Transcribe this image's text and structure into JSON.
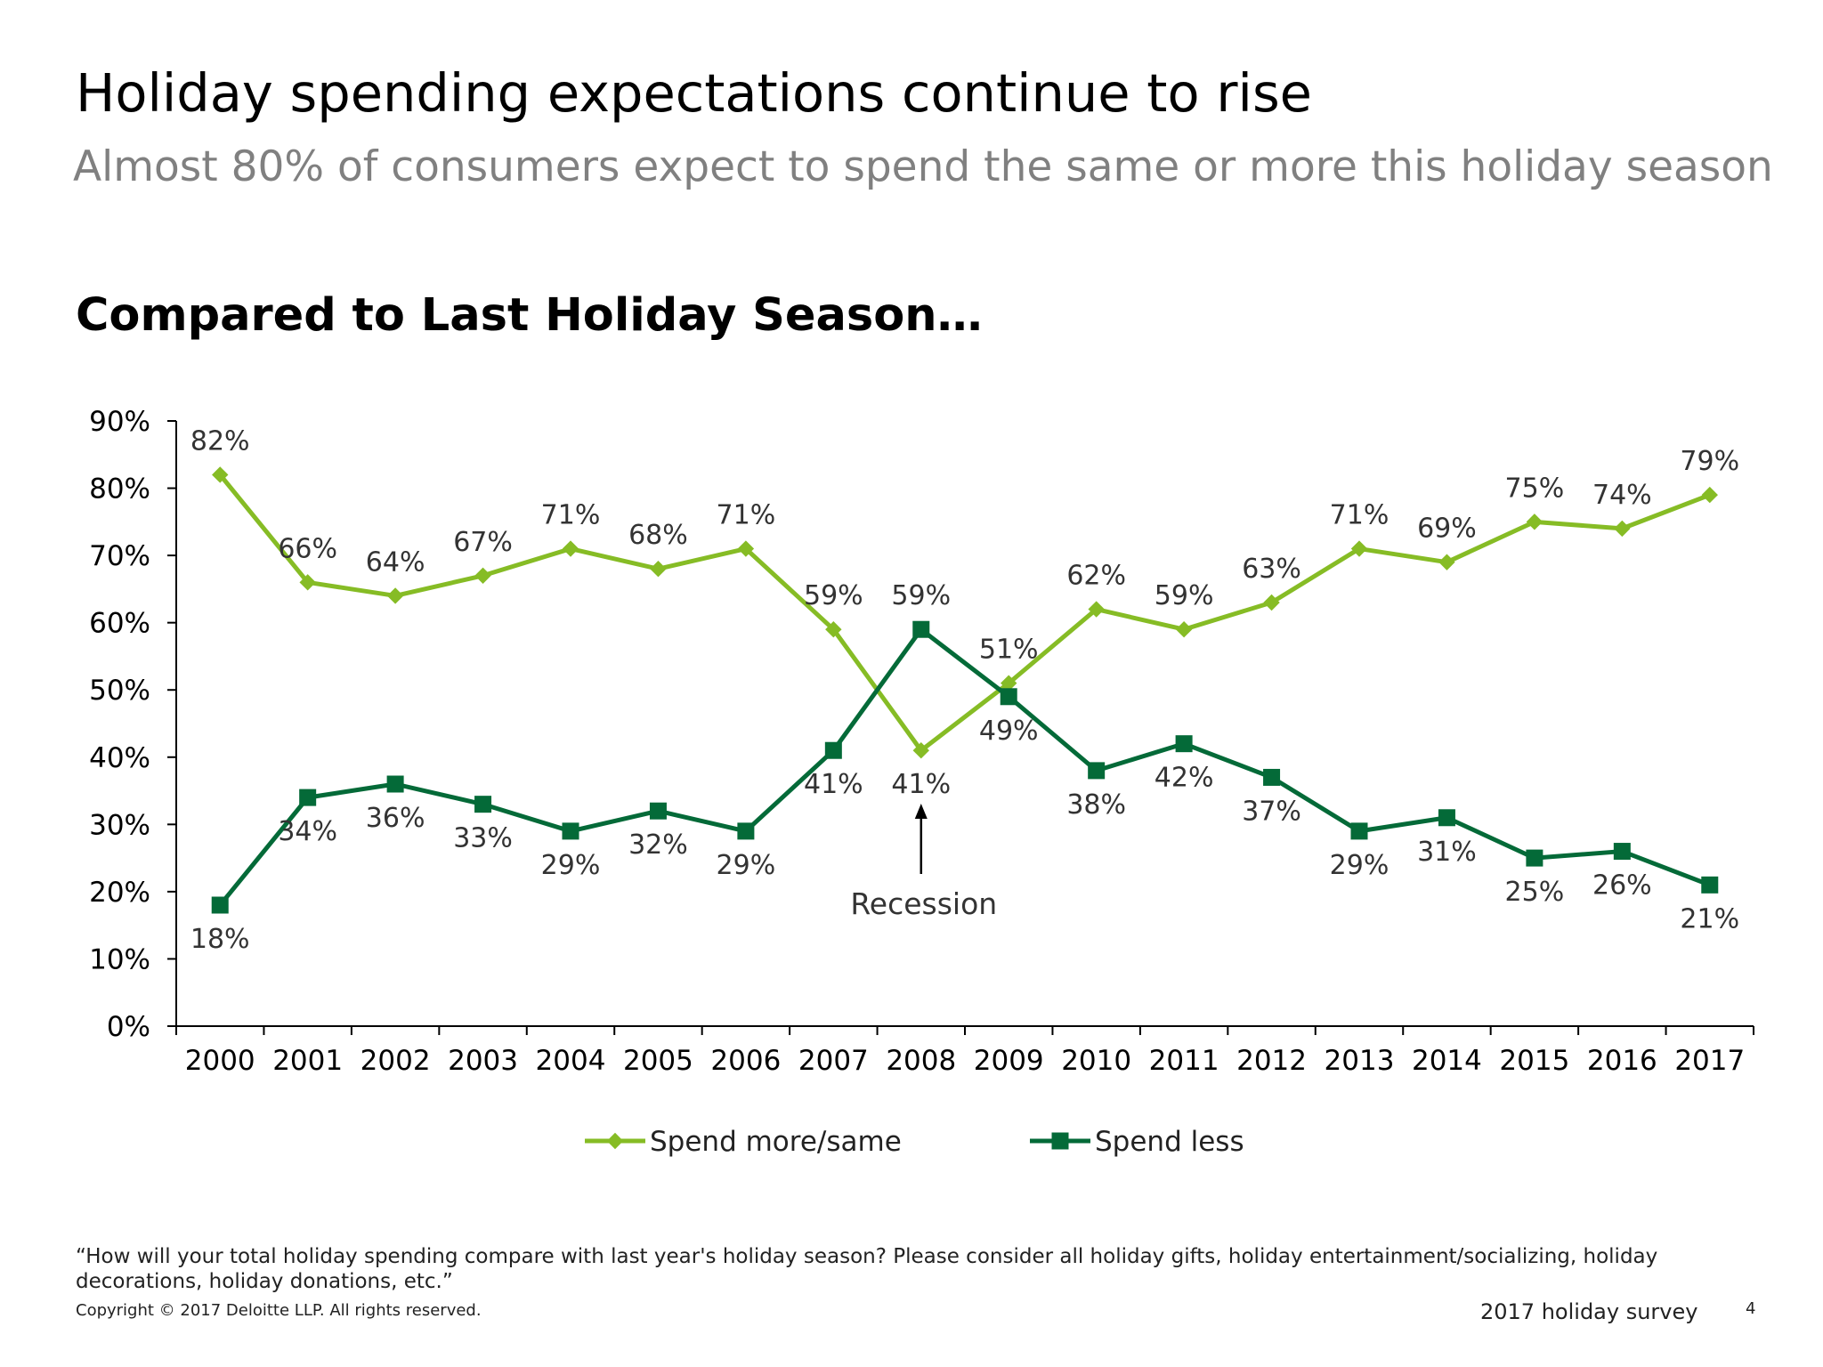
{
  "headline": "Holiday spending expectations continue to rise",
  "subheadline": "Almost 80% of consumers expect to spend the same or more this holiday season",
  "chart_title": "Compared to Last Holiday Season…",
  "footnote": "“How will your total holiday spending compare with last year's holiday season? Please consider all holiday gifts, holiday entertainment/socializing, holiday decorations, holiday donations, etc.”",
  "copyright": "Copyright © 2017 Deloitte LLP. All rights reserved.",
  "survey_label": "2017 holiday survey",
  "page_number": "4",
  "chart_data": {
    "type": "line",
    "x": [
      "2000",
      "2001",
      "2002",
      "2003",
      "2004",
      "2005",
      "2006",
      "2007",
      "2008",
      "2009",
      "2010",
      "2011",
      "2012",
      "2013",
      "2014",
      "2015",
      "2016",
      "2017"
    ],
    "ylim": [
      0,
      90
    ],
    "yticks": [
      0,
      10,
      20,
      30,
      40,
      50,
      60,
      70,
      80,
      90
    ],
    "y_tick_format": "percent",
    "grid": false,
    "legend_position": "bottom",
    "series": [
      {
        "name": "Spend more/same",
        "color": "#86BC25",
        "marker": "diamond",
        "values": [
          82,
          66,
          64,
          67,
          71,
          68,
          71,
          59,
          41,
          51,
          62,
          59,
          63,
          71,
          69,
          75,
          74,
          79
        ],
        "labels": [
          "82%",
          "66%",
          "64%",
          "67%",
          "71%",
          "68%",
          "71%",
          "59%",
          "41%",
          "51%",
          "62%",
          "59%",
          "63%",
          "71%",
          "69%",
          "75%",
          "74%",
          "79%"
        ]
      },
      {
        "name": "Spend less",
        "color": "#046A38",
        "marker": "square",
        "values": [
          18,
          34,
          36,
          33,
          29,
          32,
          29,
          41,
          59,
          49,
          38,
          42,
          37,
          29,
          31,
          25,
          26,
          21
        ],
        "labels": [
          "18%",
          "34%",
          "36%",
          "33%",
          "29%",
          "32%",
          "29%",
          "41%",
          "59%",
          "49%",
          "38%",
          "42%",
          "37%",
          "29%",
          "31%",
          "25%",
          "26%",
          "21%"
        ]
      }
    ],
    "annotation": {
      "text": "Recession",
      "x": "2008"
    }
  }
}
